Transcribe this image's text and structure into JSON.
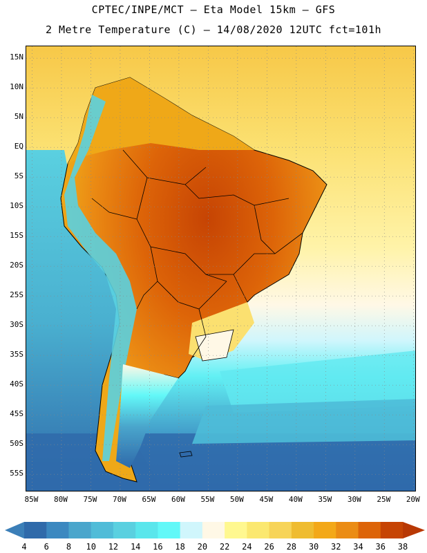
{
  "title": {
    "line1": "CPTEC/INPE/MCT –  Eta Model 15km – GFS",
    "line2": "2 Metre Temperature (C) – 14/08/2020 12UTC fct=101h"
  },
  "lat_labels": [
    {
      "text": "15N",
      "lat": 15
    },
    {
      "text": "10N",
      "lat": 10
    },
    {
      "text": "5N",
      "lat": 5
    },
    {
      "text": "EQ",
      "lat": 0
    },
    {
      "text": "5S",
      "lat": -5
    },
    {
      "text": "10S",
      "lat": -10
    },
    {
      "text": "15S",
      "lat": -15
    },
    {
      "text": "20S",
      "lat": -20
    },
    {
      "text": "25S",
      "lat": -25
    },
    {
      "text": "30S",
      "lat": -30
    },
    {
      "text": "35S",
      "lat": -35
    },
    {
      "text": "40S",
      "lat": -40
    },
    {
      "text": "45S",
      "lat": -45
    },
    {
      "text": "50S",
      "lat": -50
    },
    {
      "text": "55S",
      "lat": -55
    }
  ],
  "lon_labels": [
    {
      "text": "85W",
      "lon": -85
    },
    {
      "text": "80W",
      "lon": -80
    },
    {
      "text": "75W",
      "lon": -75
    },
    {
      "text": "70W",
      "lon": -70
    },
    {
      "text": "65W",
      "lon": -65
    },
    {
      "text": "60W",
      "lon": -60
    },
    {
      "text": "55W",
      "lon": -55
    },
    {
      "text": "50W",
      "lon": -50
    },
    {
      "text": "45W",
      "lon": -45
    },
    {
      "text": "40W",
      "lon": -40
    },
    {
      "text": "35W",
      "lon": -35
    },
    {
      "text": "30W",
      "lon": -30
    },
    {
      "text": "25W",
      "lon": -25
    },
    {
      "text": "20W",
      "lon": -20
    }
  ],
  "map_extent": {
    "lon_min": -86,
    "lon_max": -19.5,
    "lat_min": -58,
    "lat_max": 17
  },
  "colorbar": {
    "levels": [
      4,
      6,
      8,
      10,
      12,
      14,
      16,
      18,
      20,
      22,
      24,
      26,
      28,
      30,
      32,
      34,
      36,
      38
    ],
    "colors": [
      "#3b7fb8",
      "#2f6aaa",
      "#3b88c0",
      "#4aa6cc",
      "#50bcd8",
      "#5ad0e0",
      "#5ae6ec",
      "#62f8f8",
      "#d0f6fc",
      "#fff8e6",
      "#fff890",
      "#fbe870",
      "#f7d458",
      "#efbc30",
      "#f3a818",
      "#eb8c14",
      "#dd6408",
      "#c64404",
      "#b83804"
    ]
  },
  "colors": {
    "ocean_north": "#fbe07a",
    "ocean_mid": "#fff0a8",
    "ocean_cold": "#62dff0",
    "ocean_deep": "#3b88c0",
    "land_hot": "#dd6408",
    "land_warm": "#efa818",
    "andes": "#5ad0e0"
  }
}
